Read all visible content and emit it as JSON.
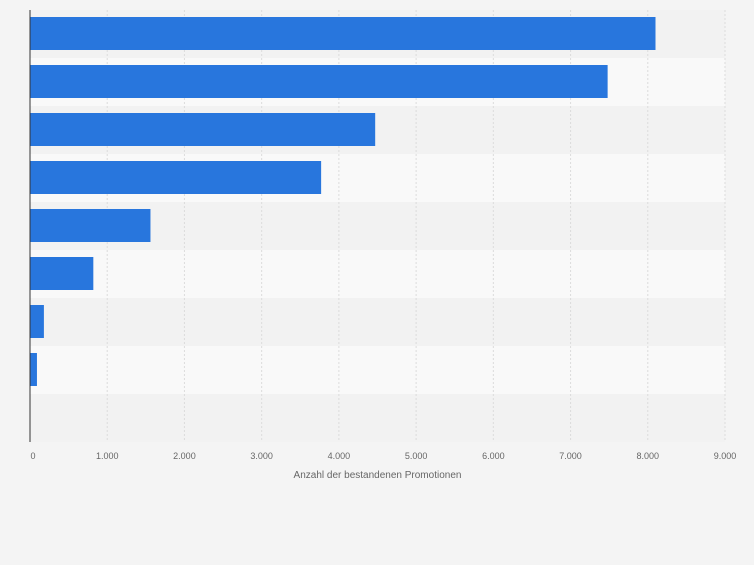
{
  "chart_data": {
    "type": "bar",
    "orientation": "horizontal",
    "title": "",
    "xlabel": "Anzahl der bestandenen Promotionen",
    "ylabel": "",
    "categories": [
      "",
      "",
      "",
      "",
      "",
      "",
      "",
      ""
    ],
    "values": [
      8100,
      7480,
      4470,
      3770,
      1560,
      820,
      180,
      90
    ],
    "xlim": [
      0,
      9000
    ],
    "xticks": [
      "0",
      "1.000",
      "2.000",
      "3.000",
      "4.000",
      "5.000",
      "6.000",
      "7.000",
      "8.000",
      "9.000"
    ],
    "grid": true,
    "legend": "none",
    "colors": {
      "bar": "#2876dd",
      "background": "#f4f4f4",
      "band_light": "#f9f9f9",
      "band_dark": "#f2f2f2",
      "grid": "#dcdcdc",
      "axis": "#333333",
      "text": "#666666"
    }
  }
}
